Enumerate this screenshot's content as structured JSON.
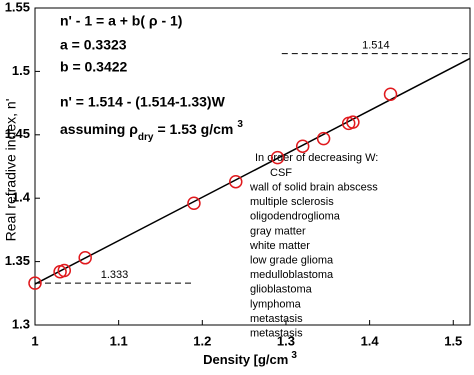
{
  "chart_data": {
    "type": "scatter",
    "x_label": "Density [g/cm",
    "x_label_sup": "3",
    "y_label": "Real refradive index, n'",
    "xlim": [
      1,
      1.52
    ],
    "ylim": [
      1.3,
      1.55
    ],
    "xticks": [
      1,
      1.1,
      1.2,
      1.3,
      1.4,
      1.5
    ],
    "yticks": [
      1.3,
      1.35,
      1.4,
      1.45,
      1.5,
      1.55
    ],
    "marker_color": "#e0191d",
    "x": [
      1.0,
      1.03,
      1.035,
      1.06,
      1.19,
      1.24,
      1.29,
      1.32,
      1.345,
      1.375,
      1.38,
      1.425
    ],
    "values": [
      1.333,
      1.342,
      1.343,
      1.353,
      1.396,
      1.413,
      1.432,
      1.441,
      1.447,
      1.459,
      1.46,
      1.482
    ],
    "fit_line": {
      "x": [
        1,
        1.52
      ],
      "values": [
        1.3323,
        1.5102
      ],
      "color": "#000000"
    },
    "reference_lines": [
      {
        "value": 1.333,
        "label": "1.333",
        "xrange": [
          1,
          1.19
        ]
      },
      {
        "value": 1.514,
        "label": "1.514",
        "xrange": [
          1.295,
          1.52
        ]
      }
    ],
    "annotations": [
      "n' - 1 = a + b( ρ - 1)",
      "a = 0.3323",
      "b = 0.3422",
      "n' = 1.514 - (1.514-1.33)W"
    ],
    "assumption": {
      "text": "assuming ρ",
      "sub": "dry",
      "rest": "= 1.53 g/cm",
      "sup": "3"
    },
    "legend_title": "In order of decreasing W:",
    "legend_items": [
      "CSF",
      "wall of solid brain abscess",
      "multiple sclerosis",
      "oligodendroglioma",
      "gray matter",
      "white matter",
      "low grade glioma",
      "medulloblastoma",
      "glioblastoma",
      "lymphoma",
      "metastasis",
      "metastasis"
    ]
  }
}
